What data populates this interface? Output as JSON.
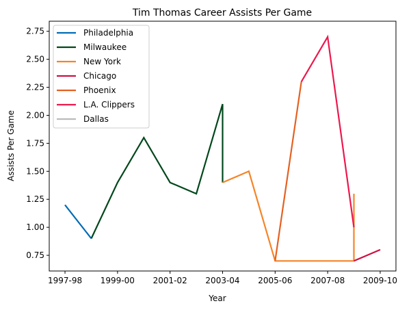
{
  "chart_data": {
    "type": "line",
    "title": "Tim Thomas  Career Assists Per Game",
    "xlabel": "Year",
    "ylabel": "Assists Per Game",
    "x_tick_labels": [
      "1997-98",
      "1999-00",
      "2001-02",
      "2003-04",
      "2005-06",
      "2007-08",
      "2009-10"
    ],
    "x_tick_positions": [
      0,
      2,
      4,
      6,
      8,
      10,
      12
    ],
    "xlim": [
      -0.6,
      12.6
    ],
    "ylim": [
      0.61,
      2.84
    ],
    "y_ticks": [
      "0.75",
      "1.00",
      "1.25",
      "1.50",
      "1.75",
      "2.00",
      "2.25",
      "2.50",
      "2.75"
    ],
    "y_tick_values": [
      0.75,
      1.0,
      1.25,
      1.5,
      1.75,
      2.0,
      2.25,
      2.5,
      2.75
    ],
    "grid": false,
    "legend_position": "top-left",
    "series": [
      {
        "name": "Philadelphia",
        "color": "#006BB6",
        "points": [
          [
            0,
            1.2
          ],
          [
            1,
            0.9
          ]
        ]
      },
      {
        "name": "Milwaukee",
        "color": "#00471B",
        "points": [
          [
            1,
            0.9
          ],
          [
            2,
            1.4
          ],
          [
            3,
            1.8
          ],
          [
            4,
            1.4
          ],
          [
            5,
            1.3
          ],
          [
            6,
            2.1
          ],
          [
            6,
            1.4
          ]
        ]
      },
      {
        "name": "New York",
        "color": "#F58426",
        "points": [
          [
            6,
            1.4
          ],
          [
            7,
            1.5
          ],
          [
            8,
            0.7
          ],
          [
            11,
            0.7
          ],
          [
            11,
            1.3
          ]
        ]
      },
      {
        "name": "Chicago",
        "color": "#CE1141",
        "points": [
          [
            11,
            0.7
          ],
          [
            12,
            0.8
          ]
        ]
      },
      {
        "name": "Phoenix",
        "color": "#E56020",
        "points": [
          [
            8,
            0.7
          ],
          [
            9,
            2.3
          ]
        ]
      },
      {
        "name": "L.A. Clippers",
        "color": "#ED174C",
        "points": [
          [
            9,
            2.3
          ],
          [
            10,
            2.7
          ],
          [
            11,
            1.0
          ]
        ]
      },
      {
        "name": "Dallas",
        "color": "#BBBBBB",
        "points": []
      }
    ]
  }
}
